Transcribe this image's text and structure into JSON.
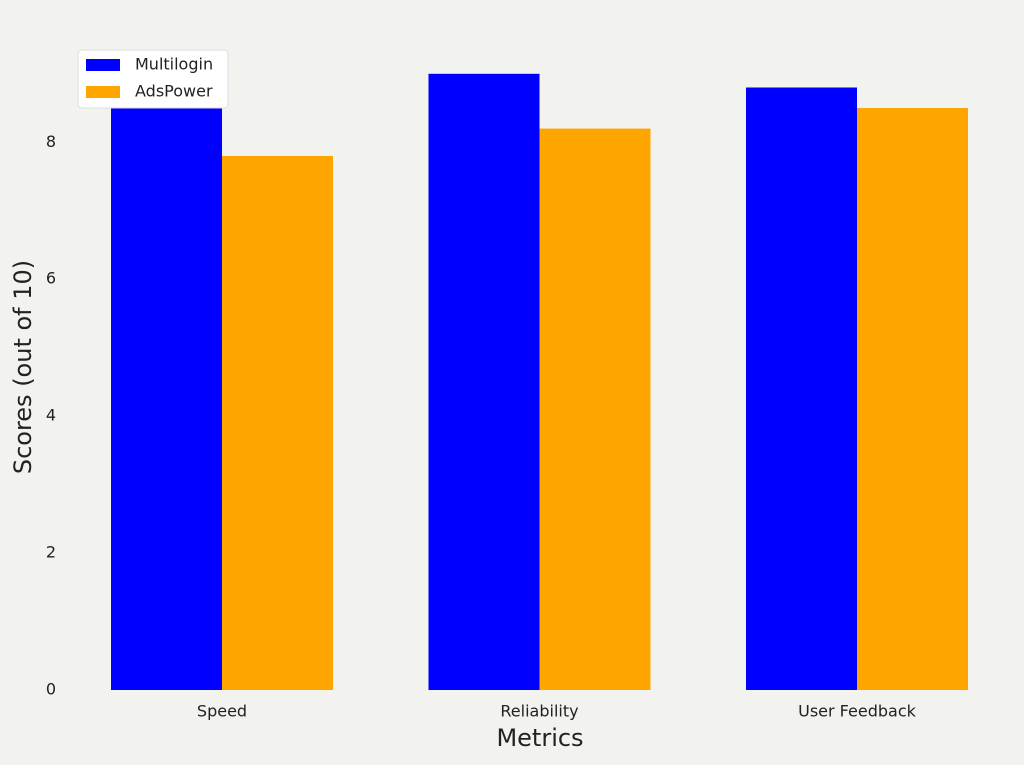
{
  "chart_data": {
    "type": "bar",
    "x_label": "Metrics",
    "y_label": "Scores (out of 10)",
    "categories": [
      "Speed",
      "Reliability",
      "User Feedback"
    ],
    "series": [
      {
        "name": "Multilogin",
        "color": "#0000ff",
        "values": [
          8.5,
          9.0,
          8.8
        ]
      },
      {
        "name": "AdsPower",
        "color": "#ffa500",
        "values": [
          7.8,
          8.2,
          8.5
        ]
      }
    ],
    "ylim": [
      0,
      9.45
    ],
    "yticks": [
      0,
      2,
      4,
      6,
      8
    ],
    "grid": false,
    "legend": "upper-left"
  }
}
